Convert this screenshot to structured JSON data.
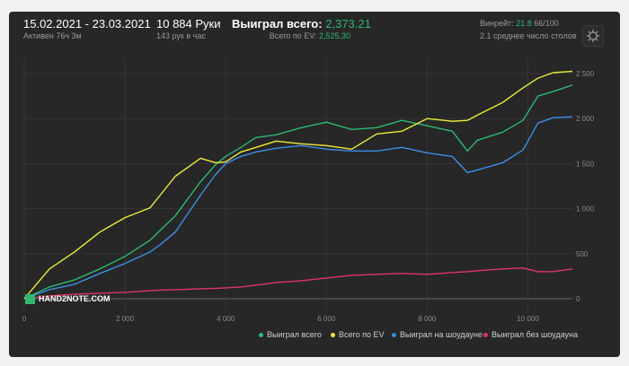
{
  "header": {
    "period": "15.02.2021 - 23.03.2021",
    "active": "Активен 76ч 3м",
    "hands": "10 884 Руки",
    "hands_per_hour": "143 рук в час",
    "won_label": "Выиграл всего:",
    "won_value": "2,373.21",
    "ev_label": "Всего по EV:",
    "ev_value": "2,525.30",
    "winrate_label": "Винрейт:",
    "winrate_value": "21.8",
    "winrate_rest": "66/100",
    "tables": "2.1 среднее число столов"
  },
  "logo": "HAND2NOTE.COM",
  "colors": {
    "green": "#2eb872",
    "yellow": "#ecec3c",
    "blue": "#3b8ee6",
    "pink": "#e0336d"
  },
  "chart_data": {
    "type": "line",
    "x_ticks": [
      "0",
      "2 000",
      "4 000",
      "6 000",
      "8 000",
      "10 000"
    ],
    "y_ticks": [
      "0",
      "500",
      "1 000",
      "1 500",
      "2 000",
      "2 500"
    ],
    "xlim": [
      0,
      10884
    ],
    "ylim": [
      -150,
      2600
    ],
    "x": [
      0,
      500,
      1000,
      1500,
      2000,
      2500,
      2700,
      3000,
      3500,
      3800,
      4000,
      4300,
      4600,
      5000,
      5500,
      6000,
      6500,
      7000,
      7500,
      8000,
      8500,
      8800,
      9000,
      9500,
      9900,
      10200,
      10500,
      10884
    ],
    "series": [
      {
        "name": "Выиграл всего",
        "color": "#2eb872",
        "values": [
          0,
          130,
          210,
          330,
          470,
          650,
          760,
          920,
          1300,
          1490,
          1580,
          1680,
          1790,
          1820,
          1900,
          1960,
          1880,
          1900,
          1980,
          1920,
          1860,
          1640,
          1760,
          1850,
          1980,
          2250,
          2300,
          2373
        ]
      },
      {
        "name": "Всего по EV",
        "color": "#ecec3c",
        "values": [
          0,
          330,
          520,
          740,
          900,
          1010,
          1150,
          1360,
          1560,
          1510,
          1520,
          1630,
          1680,
          1750,
          1720,
          1700,
          1660,
          1830,
          1860,
          2000,
          1970,
          1980,
          2040,
          2180,
          2340,
          2450,
          2510,
          2525
        ]
      },
      {
        "name": "Выиграл на шоудауне",
        "color": "#3b8ee6",
        "values": [
          0,
          100,
          160,
          280,
          390,
          520,
          600,
          740,
          1150,
          1380,
          1500,
          1580,
          1630,
          1670,
          1700,
          1660,
          1640,
          1640,
          1680,
          1620,
          1580,
          1400,
          1430,
          1510,
          1650,
          1950,
          2010,
          2020
        ]
      },
      {
        "name": "Выиграл без шоудауна",
        "color": "#e0336d",
        "values": [
          0,
          30,
          50,
          60,
          70,
          90,
          95,
          100,
          110,
          115,
          120,
          130,
          150,
          180,
          200,
          230,
          260,
          270,
          280,
          270,
          290,
          300,
          310,
          330,
          340,
          300,
          300,
          330
        ]
      }
    ]
  }
}
